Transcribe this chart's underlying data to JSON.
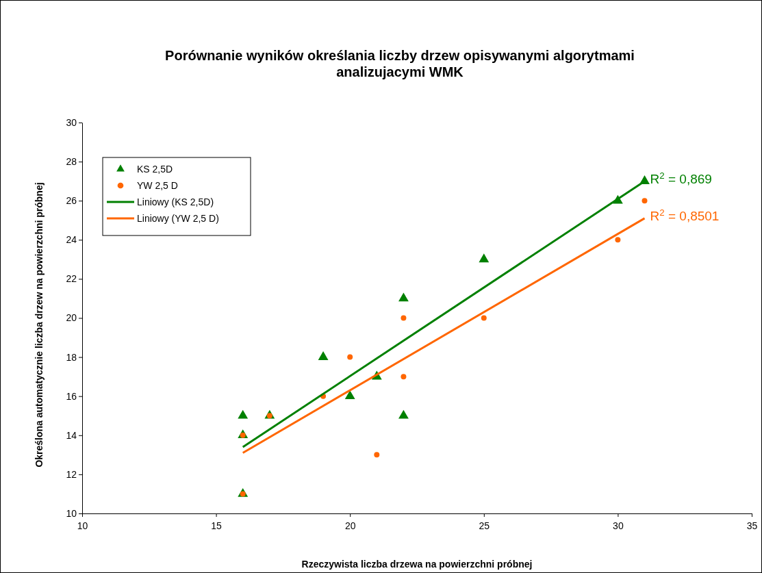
{
  "chart_data": {
    "type": "scatter",
    "title": "Porównanie wyników określania liczby drzew opisywanymi algorytmami analizujacymi WMK",
    "xlabel": "Rzeczywista liczba drzewa na powierzchni próbnej",
    "ylabel": "Określona automatycznie liczba drzew na powierzchni próbnej",
    "xlim": [
      10,
      35
    ],
    "xticks": [
      10,
      15,
      20,
      25,
      30,
      35
    ],
    "ylim": [
      10,
      30
    ],
    "yticks": [
      10,
      12,
      14,
      16,
      18,
      20,
      22,
      24,
      26,
      28,
      30
    ],
    "grid": false,
    "legend": "top left",
    "series": [
      {
        "name": "KS 2,5D",
        "marker": "triangle",
        "color": "#008000",
        "x": [
          16,
          16,
          16,
          17,
          19,
          20,
          21,
          22,
          22,
          25,
          30,
          31
        ],
        "values": [
          15,
          14,
          11,
          15,
          18,
          16,
          17,
          21,
          15,
          23,
          26,
          27
        ]
      },
      {
        "name": "YW 2,5 D",
        "marker": "circle",
        "color": "#ff6600",
        "x": [
          16,
          16,
          17,
          19,
          20,
          21,
          22,
          22,
          25,
          30,
          31
        ],
        "values": [
          14,
          11,
          15,
          16,
          18,
          13,
          20,
          17,
          20,
          24,
          26
        ]
      },
      {
        "name": "Liniowy (KS 2,5D)",
        "type": "line",
        "marker": "none",
        "line_style": "solid",
        "color": "#008000",
        "x": [
          16,
          31
        ],
        "values": [
          13.4,
          27.0
        ]
      },
      {
        "name": "Liniowy (YW 2,5 D)",
        "type": "line",
        "marker": "none",
        "line_style": "solid",
        "color": "#ff6600",
        "x": [
          16,
          31
        ],
        "values": [
          13.1,
          25.1
        ]
      }
    ],
    "annotations": [
      {
        "text": "R$^{2}$ = 0,869",
        "x": 31,
        "y": 27.0
      },
      {
        "text": "R$^{2}$ = 0,8501",
        "x": 31,
        "y": 25.1
      }
    ]
  }
}
